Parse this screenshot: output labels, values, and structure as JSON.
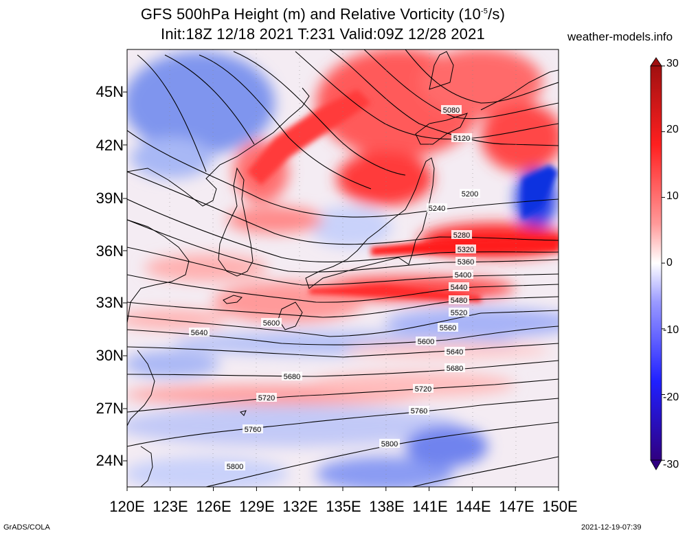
{
  "title": {
    "line1_prefix": "GFS 500hPa Height (m) and Relative Vorticity (10",
    "line1_sup": "-5",
    "line1_suffix": "/s)",
    "line2": "Init:18Z 12/18 2021 T:231 Valid:09Z 12/28 2021"
  },
  "brand": "weather-models.info",
  "map": {
    "lon_range": [
      120,
      150
    ],
    "lat_range": [
      22.5,
      47.5
    ],
    "lat_ticks": [
      "45N",
      "42N",
      "39N",
      "36N",
      "33N",
      "30N",
      "27N",
      "24N"
    ],
    "lon_ticks": [
      "120E",
      "123E",
      "126E",
      "129E",
      "132E",
      "135E",
      "138E",
      "141E",
      "144E",
      "147E",
      "150E"
    ],
    "contour_labels": [
      "5080",
      "5120",
      "5200",
      "5240",
      "5280",
      "5320",
      "5360",
      "5400",
      "5440",
      "5480",
      "5520",
      "5560",
      "5600",
      "5640",
      "5680",
      "5720",
      "5760",
      "5800"
    ],
    "left_labels": [
      "5600",
      "5640",
      "5680",
      "5720",
      "5760",
      "5800"
    ]
  },
  "colorbar": {
    "labels": [
      "30",
      "20",
      "10",
      "0",
      "-10",
      "-20",
      "-30"
    ],
    "colors": {
      "max": "#a01010",
      "pos": "#ff2020",
      "zero": "#ffffff",
      "neg": "#2020ff",
      "min": "#300080"
    }
  },
  "footer": {
    "left": "GrADS/COLA",
    "right": "2021-12-19-07:39"
  }
}
